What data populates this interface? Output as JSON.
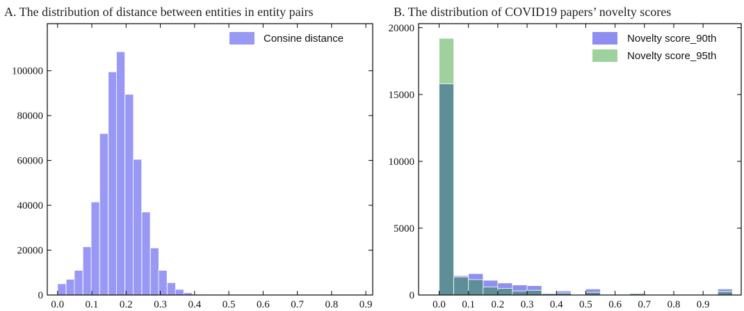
{
  "chart_data": [
    {
      "type": "bar",
      "title": "A. The distribution of distance between entities in entity pairs",
      "xlim": [
        -0.03,
        0.92
      ],
      "ylim": [
        0,
        121000
      ],
      "xticks": [
        "0.0",
        "0.1",
        "0.2",
        "0.3",
        "0.4",
        "0.5",
        "0.6",
        "0.7",
        "0.8",
        "0.9"
      ],
      "yticks": [
        "0",
        "20000",
        "40000",
        "60000",
        "80000",
        "100000"
      ],
      "legend_position": "top-right",
      "bin_width": 0.0246,
      "series": [
        {
          "name": "Consine distance",
          "color": "#9999f5",
          "bins": [
            {
              "x": 0.0,
              "value": 5000
            },
            {
              "x": 0.025,
              "value": 7000
            },
            {
              "x": 0.049,
              "value": 11000
            },
            {
              "x": 0.074,
              "value": 21500
            },
            {
              "x": 0.098,
              "value": 41500
            },
            {
              "x": 0.123,
              "value": 72000
            },
            {
              "x": 0.148,
              "value": 99500
            },
            {
              "x": 0.172,
              "value": 108500
            },
            {
              "x": 0.197,
              "value": 89500
            },
            {
              "x": 0.221,
              "value": 60500
            },
            {
              "x": 0.246,
              "value": 37000
            },
            {
              "x": 0.271,
              "value": 21000
            },
            {
              "x": 0.295,
              "value": 11000
            },
            {
              "x": 0.32,
              "value": 5500
            },
            {
              "x": 0.344,
              "value": 2500
            },
            {
              "x": 0.369,
              "value": 1000
            },
            {
              "x": 0.394,
              "value": 300
            }
          ]
        }
      ]
    },
    {
      "type": "bar",
      "title": "B. The distribution of COVID19 papers’ novelty scores",
      "xlim": [
        -0.07,
        1.03
      ],
      "ylim": [
        0,
        20300
      ],
      "xticks": [
        "0.0",
        "0.1",
        "0.2",
        "0.3",
        "0.4",
        "0.5",
        "0.6",
        "0.7",
        "0.8",
        "0.9"
      ],
      "yticks": [
        "0",
        "5000",
        "10000",
        "15000",
        "20000"
      ],
      "legend_position": "top-right",
      "bin_width": 0.05,
      "series": [
        {
          "name": "Novelty score_90th",
          "color": "#8f8ff2",
          "bins": [
            {
              "x": 0.0,
              "value": 15800
            },
            {
              "x": 0.05,
              "value": 1450
            },
            {
              "x": 0.1,
              "value": 1600
            },
            {
              "x": 0.15,
              "value": 1100
            },
            {
              "x": 0.2,
              "value": 900
            },
            {
              "x": 0.25,
              "value": 750
            },
            {
              "x": 0.3,
              "value": 700
            },
            {
              "x": 0.35,
              "value": 150
            },
            {
              "x": 0.4,
              "value": 300
            },
            {
              "x": 0.45,
              "value": 40
            },
            {
              "x": 0.5,
              "value": 450
            },
            {
              "x": 0.55,
              "value": 40
            },
            {
              "x": 0.6,
              "value": 40
            },
            {
              "x": 0.65,
              "value": 150
            },
            {
              "x": 0.7,
              "value": 30
            },
            {
              "x": 0.75,
              "value": 30
            },
            {
              "x": 0.8,
              "value": 30
            },
            {
              "x": 0.85,
              "value": 30
            },
            {
              "x": 0.9,
              "value": 30
            },
            {
              "x": 0.95,
              "value": 450
            }
          ]
        },
        {
          "name": "Novelty score_95th",
          "color": "#9fd19f",
          "bins": [
            {
              "x": 0.0,
              "value": 19200
            },
            {
              "x": 0.05,
              "value": 1350
            },
            {
              "x": 0.1,
              "value": 1150
            },
            {
              "x": 0.15,
              "value": 600
            },
            {
              "x": 0.2,
              "value": 500
            },
            {
              "x": 0.25,
              "value": 300
            },
            {
              "x": 0.3,
              "value": 350
            },
            {
              "x": 0.35,
              "value": 100
            },
            {
              "x": 0.4,
              "value": 150
            },
            {
              "x": 0.45,
              "value": 20
            },
            {
              "x": 0.5,
              "value": 200
            },
            {
              "x": 0.55,
              "value": 20
            },
            {
              "x": 0.6,
              "value": 20
            },
            {
              "x": 0.65,
              "value": 100
            },
            {
              "x": 0.7,
              "value": 20
            },
            {
              "x": 0.75,
              "value": 20
            },
            {
              "x": 0.8,
              "value": 20
            },
            {
              "x": 0.85,
              "value": 20
            },
            {
              "x": 0.9,
              "value": 20
            },
            {
              "x": 0.95,
              "value": 250
            }
          ]
        }
      ],
      "overlap_color": "#5e8e98"
    }
  ]
}
